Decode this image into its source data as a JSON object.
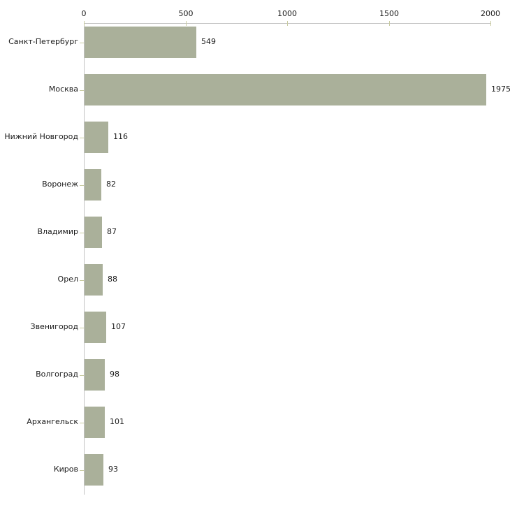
{
  "chart_data": {
    "type": "bar",
    "orientation": "horizontal",
    "title": "",
    "xlabel": "",
    "ylabel": "",
    "categories": [
      "Санкт-Петербург",
      "Москва",
      "Нижний Новгород",
      "Воронеж",
      "Владимир",
      "Орел",
      "Звенигород",
      "Волгоград",
      "Архангельск",
      "Киров"
    ],
    "values": [
      549,
      1975,
      116,
      82,
      87,
      88,
      107,
      98,
      101,
      93
    ],
    "value_labels": [
      "549",
      "1975",
      "116",
      "82",
      "87",
      "88",
      "107",
      "98",
      "101",
      "93"
    ],
    "xlim": [
      0,
      2000
    ],
    "x_ticks": [
      0,
      500,
      1000,
      1500,
      2000
    ],
    "x_tick_labels": [
      "0",
      "500",
      "1000",
      "1500",
      "2000"
    ],
    "axis_position": "top",
    "grid": false,
    "legend": null,
    "colors": {
      "bar": "#aab09a",
      "axis_line": "#c2c2c2",
      "tick_mark": "#c8cba0",
      "text": "#1a1a1a",
      "background": "#ffffff"
    }
  }
}
